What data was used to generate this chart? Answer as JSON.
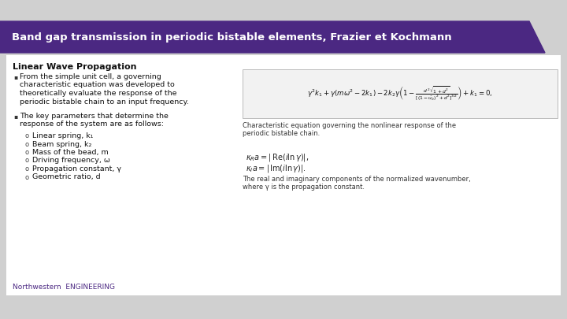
{
  "title": "Band gap transmission in periodic bistable elements, Frazier et Kochmann",
  "title_bg_color": "#4B2882",
  "title_text_color": "#FFFFFF",
  "slide_bg_color": "#D0D0D0",
  "content_bg_color": "#FFFFFF",
  "section_header": "Linear Wave Propagation",
  "bullet1_lines": [
    "From the simple unit cell, a governing",
    "characteristic equation was developed to",
    "theoretically evaluate the response of the",
    "periodic bistable chain to an input frequency."
  ],
  "bullet2_lines": [
    "The key parameters that determine the",
    "response of the system are as follows:"
  ],
  "subbullets": [
    "Linear spring, k₁",
    "Beam spring, k₂",
    "Mass of the bead, m",
    "Driving frequency, ω",
    "Propagation constant, γ",
    "Geometric ratio, d"
  ],
  "eq1_caption_lines": [
    "Characteristic equation governing the nonlinear response of the",
    "periodic bistable chain."
  ],
  "eq3_caption_lines": [
    "The real and imaginary components of the normalized wavenumber,",
    "where γ is the propagation constant."
  ],
  "footer_text": "Northwestern  ENGINEERING",
  "footer_text_color": "#4B2882",
  "eq_box_color": "#F2F2F2",
  "eq_box_border": "#BBBBBB"
}
